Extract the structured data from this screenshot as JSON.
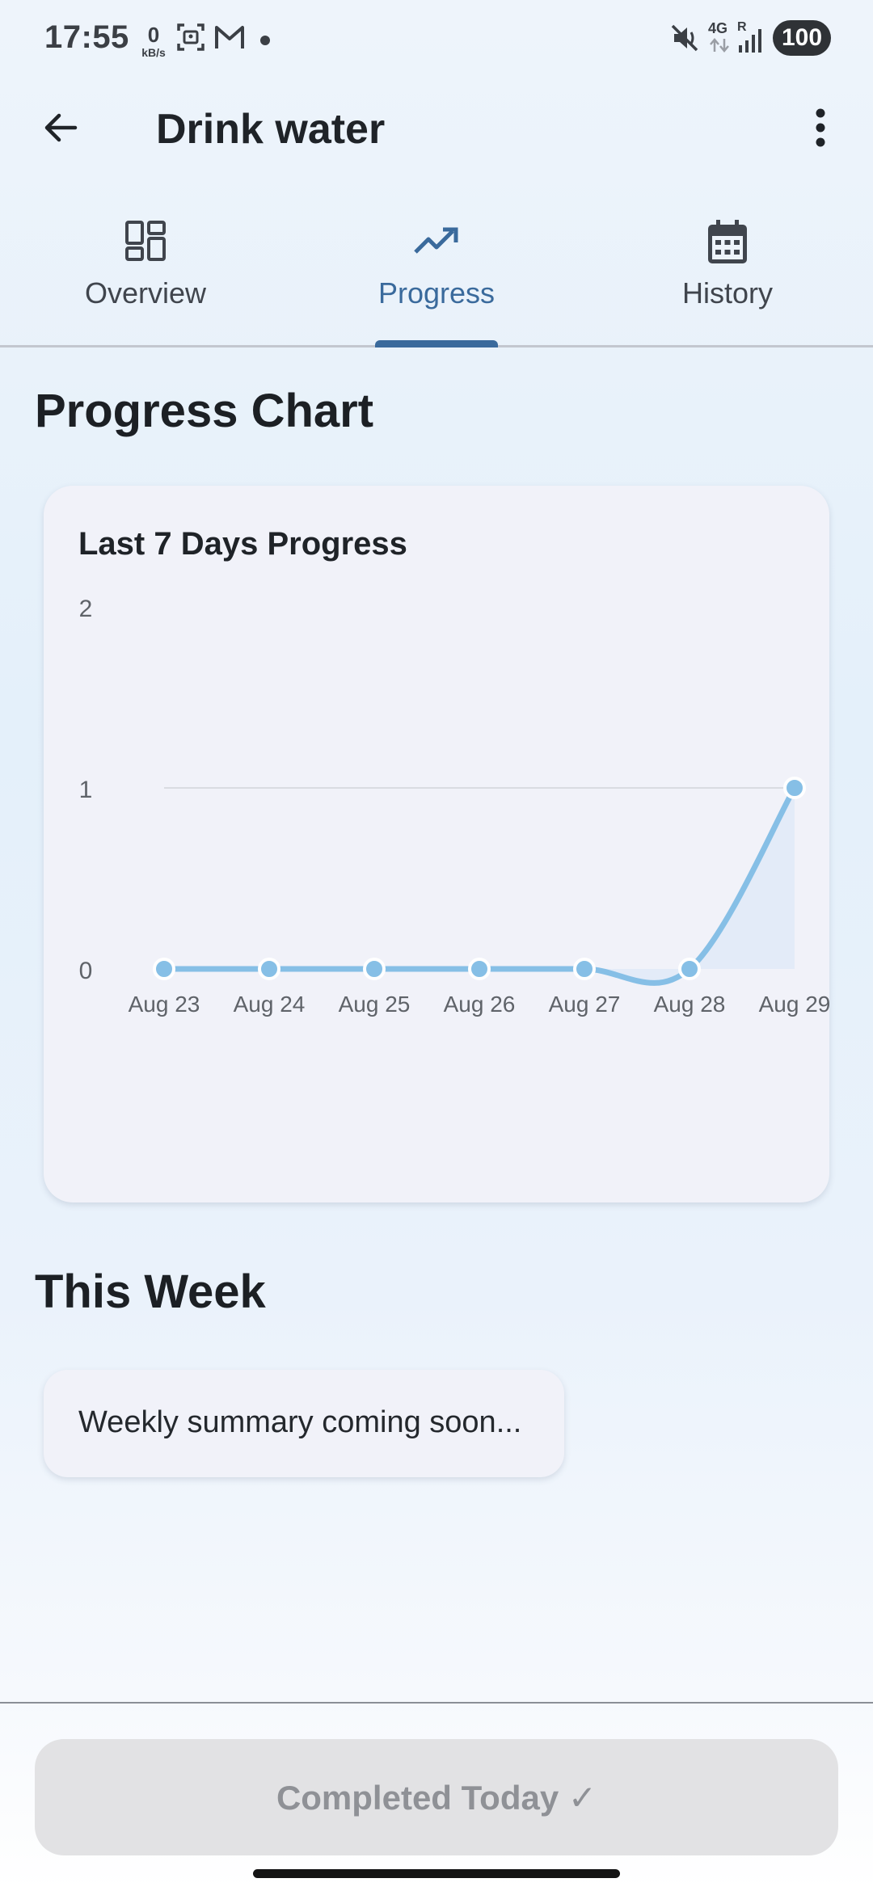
{
  "status_bar": {
    "time": "17:55",
    "net_speed_value": "0",
    "net_speed_unit": "kB/s",
    "network_label": "4G",
    "roaming_label": "R",
    "battery": "100",
    "icons": [
      "screenshot-icon",
      "gmail-icon",
      "notification-dot-icon",
      "mute-icon",
      "network-4g-icon",
      "signal-icon",
      "battery-icon"
    ]
  },
  "app_bar": {
    "title": "Drink water",
    "icons": [
      "back-arrow-icon",
      "more-vert-icon"
    ]
  },
  "tabs": [
    {
      "label": "Overview",
      "icon": "dashboard-icon",
      "active": false
    },
    {
      "label": "Progress",
      "icon": "trending-up-icon",
      "active": true
    },
    {
      "label": "History",
      "icon": "calendar-icon",
      "active": false
    }
  ],
  "colors": {
    "accent": "#3a6a9c",
    "series": "#86bfe6",
    "card": "#f1f2f9"
  },
  "progress_section": {
    "title": "Progress Chart"
  },
  "chart_data": {
    "type": "line",
    "title": "Last 7 Days Progress",
    "xlabel": "",
    "ylabel": "",
    "categories": [
      "Aug 23",
      "Aug 24",
      "Aug 25",
      "Aug 26",
      "Aug 27",
      "Aug 28",
      "Aug 29"
    ],
    "values": [
      0,
      0,
      0,
      0,
      0,
      0,
      1
    ],
    "ylim": [
      0,
      2
    ],
    "yticks": [
      "0",
      "1",
      "2"
    ],
    "grid": "horizontal at 1",
    "legend": "none",
    "smooth": true,
    "area_fill": true
  },
  "week_section": {
    "title": "This Week",
    "summary": "Weekly summary coming soon..."
  },
  "bottom": {
    "button_label": "Completed Today ✓"
  }
}
